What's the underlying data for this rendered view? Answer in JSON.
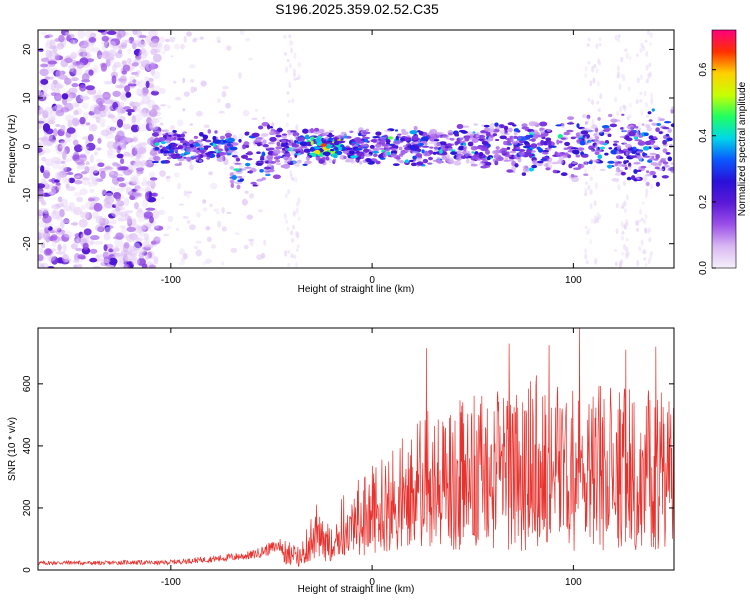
{
  "page_title": "S196.2025.359.02.52.C35",
  "colors": {
    "signal_line": "#e8322e",
    "axis": "#000000",
    "background": "#ffffff",
    "colormap": [
      "#f5f0fb",
      "#d9b8f2",
      "#9b50e8",
      "#5b1ad6",
      "#2a10d8",
      "#0a58ff",
      "#00d8e8",
      "#20ff60",
      "#c8ff00",
      "#ffd000",
      "#ff3000",
      "#ff0080"
    ]
  },
  "chart_data": [
    {
      "type": "heatmap",
      "title": "S196.2025.359.02.52.C35",
      "xlabel": "Height of straight line (km)",
      "ylabel": "Frequency (Hz)",
      "xlim": [
        -166,
        150
      ],
      "ylim": [
        -25,
        24
      ],
      "x_ticks": [
        -100,
        0,
        100
      ],
      "x_tick_labels": [
        "-100",
        "0",
        "100"
      ],
      "y_ticks": [
        -20,
        -10,
        0,
        10,
        20
      ],
      "y_tick_labels": [
        "-20",
        "-10",
        "0",
        "10",
        "20"
      ],
      "colorbar": {
        "label": "Normalized spectral amplitude",
        "range": [
          0,
          0.72
        ],
        "ticks": [
          0,
          0.2,
          0.4,
          0.6
        ],
        "tick_labels": [
          "0.0",
          "0.2",
          "0.4",
          "0.6"
        ]
      },
      "description_bands": [
        {
          "x_range": [
            -166,
            -108
          ],
          "freq_spread": "broadband noise, full frequency range",
          "amplitude": "low (0.05-0.2)"
        },
        {
          "x_range": [
            -108,
            150
          ],
          "freq_center": 0,
          "freq_halfwidth": [
            4,
            9
          ],
          "amplitude": "0.1-0.5"
        },
        {
          "x_range": [
            -30,
            -15
          ],
          "freq_center": 0,
          "peak_amplitude": 0.65
        }
      ]
    },
    {
      "type": "line",
      "title": "",
      "xlabel": "Height of straight line (km)",
      "ylabel": "SNR (10 * v/v)",
      "xlim": [
        -166,
        150
      ],
      "ylim": [
        0,
        780
      ],
      "x_ticks": [
        -100,
        0,
        100
      ],
      "x_tick_labels": [
        "-100",
        "0",
        "100"
      ],
      "y_ticks": [
        0,
        200,
        400,
        600
      ],
      "y_tick_labels": [
        "0",
        "200",
        "400",
        "600"
      ],
      "series": [
        {
          "name": "SNR",
          "x": [
            -166,
            -150,
            -135,
            -120,
            -105,
            -90,
            -75,
            -60,
            -50,
            -42,
            -36,
            -32,
            -28,
            -24,
            -20,
            -15,
            -10,
            -5,
            0,
            5,
            10,
            15,
            20,
            25,
            30,
            35,
            40,
            45,
            50,
            55,
            60,
            65,
            70,
            75,
            80,
            85,
            90,
            95,
            100,
            105,
            110,
            115,
            120,
            125,
            130,
            135,
            140,
            145,
            150
          ],
          "values": [
            22,
            24,
            22,
            25,
            23,
            30,
            38,
            48,
            70,
            90,
            60,
            120,
            190,
            150,
            160,
            200,
            240,
            250,
            300,
            320,
            330,
            380,
            360,
            420,
            400,
            430,
            410,
            460,
            450,
            470,
            440,
            500,
            480,
            470,
            520,
            490,
            510,
            480,
            500,
            540,
            520,
            490,
            510,
            470,
            520,
            480,
            500,
            460,
            430
          ],
          "spikes": [
            {
              "x": 27,
              "value": 715
            },
            {
              "x": 68,
              "value": 730
            },
            {
              "x": 88,
              "value": 725
            },
            {
              "x": 103,
              "value": 780
            },
            {
              "x": 126,
              "value": 710
            },
            {
              "x": 141,
              "value": 720
            }
          ]
        }
      ]
    }
  ]
}
